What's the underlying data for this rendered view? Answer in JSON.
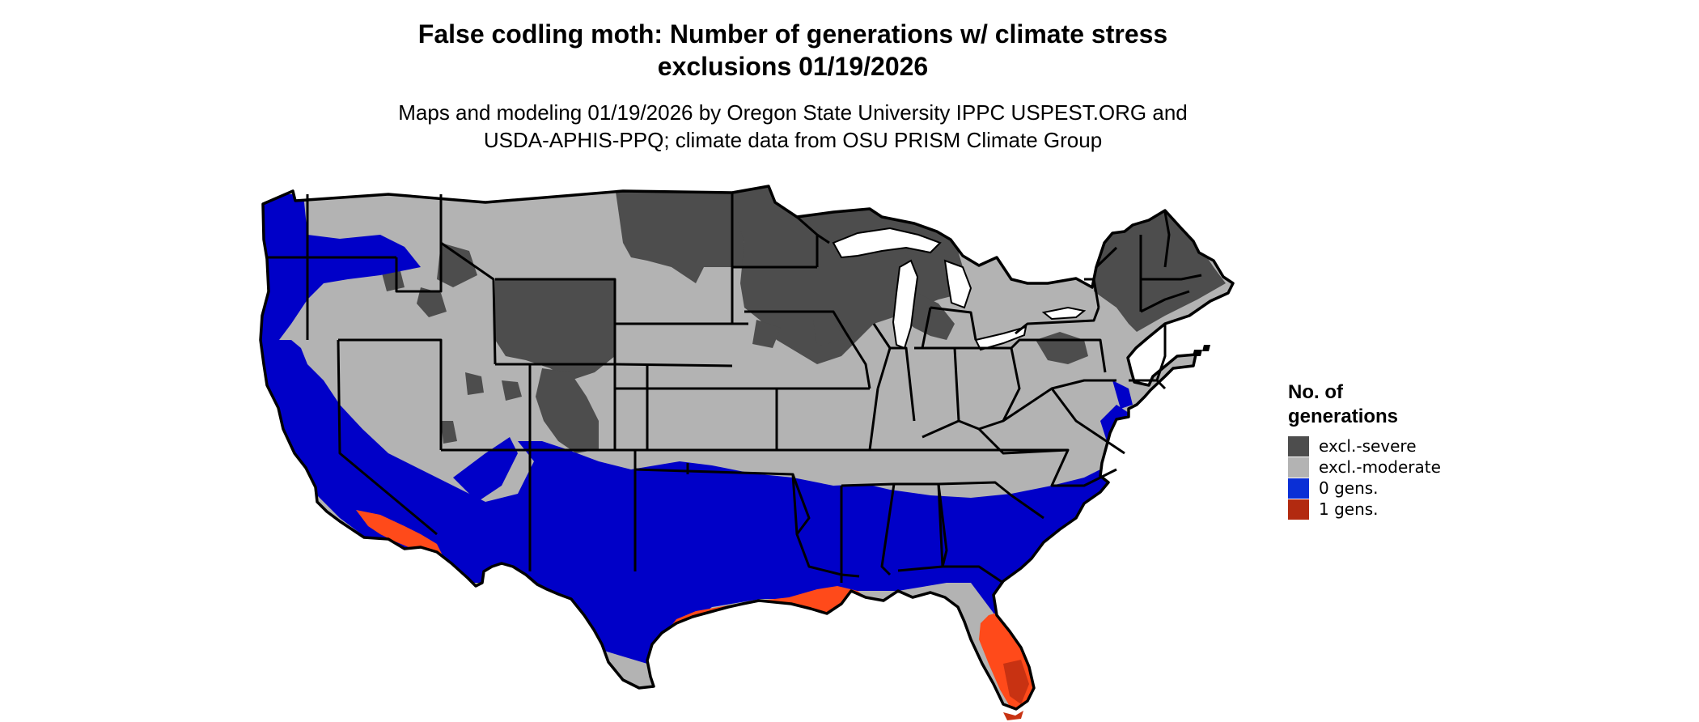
{
  "title_line1": "False codling moth: Number of generations w/ climate stress",
  "title_line2": "exclusions 01/19/2026",
  "subtitle_line1": "Maps and modeling 01/19/2026 by Oregon State University IPPC USPEST.ORG and",
  "subtitle_line2": "USDA-APHIS-PPQ; climate data from OSU PRISM Climate Group",
  "legend": {
    "title_line1": "No. of",
    "title_line2": "generations",
    "items": [
      {
        "label": "excl.-severe",
        "color": "#4d4d4d"
      },
      {
        "label": "excl.-moderate",
        "color": "#b3b3b3"
      },
      {
        "label": "0 gens.",
        "color": "#0a2fd6"
      },
      {
        "label": "1 gens.",
        "color": "#b22a10"
      }
    ]
  },
  "colors": {
    "severe": "#4d4d4d",
    "moderate": "#b3b3b3",
    "zero": "#0000c8",
    "one": "#ff4a1a",
    "one_dark": "#c83212",
    "border": "#000000",
    "lakes": "#ffffff"
  }
}
